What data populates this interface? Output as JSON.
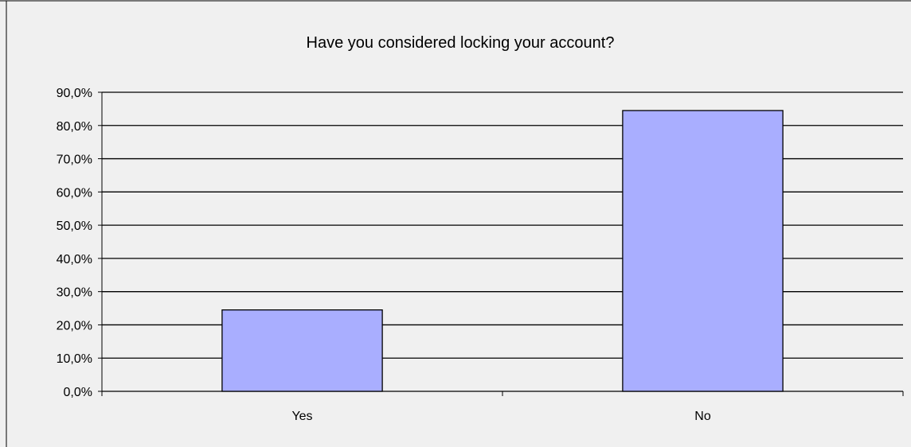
{
  "chart_data": {
    "type": "bar",
    "title": "Have you considered locking your account?",
    "categories": [
      "Yes",
      "No"
    ],
    "values": [
      24.5,
      84.5
    ],
    "ylim": [
      0,
      90
    ],
    "yticks": [
      0,
      10,
      20,
      30,
      40,
      50,
      60,
      70,
      80,
      90
    ],
    "ytick_labels": [
      "0,0%",
      "10,0%",
      "20,0%",
      "30,0%",
      "40,0%",
      "50,0%",
      "60,0%",
      "70,0%",
      "80,0%",
      "90,0%"
    ],
    "grid": true,
    "legend": "none",
    "colors": {
      "background": "#f0f0f0",
      "bar_fill": "#a9aeff",
      "bar_stroke": "#000000",
      "grid": "#000000"
    }
  }
}
